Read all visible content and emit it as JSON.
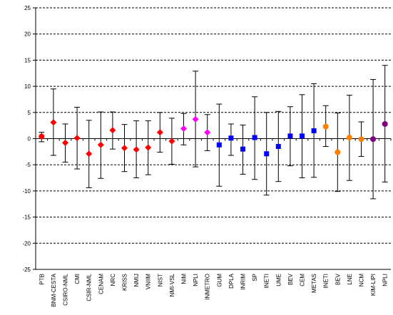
{
  "chart_data": {
    "type": "scatter",
    "title": "",
    "xlabel": "",
    "ylabel": "",
    "ylim": [
      -25,
      25
    ],
    "ytick_step": 5,
    "yticks": [
      "-25",
      "-20",
      "-15",
      "-10",
      "-5",
      "0",
      "5",
      "10",
      "15",
      "20",
      "25"
    ],
    "grid": "horizontal dashed",
    "legend": "none",
    "error_bar_color": "#000000",
    "points": [
      {
        "label": "PTB",
        "y": 0.4,
        "lower": -0.6,
        "upper": 1.2,
        "marker": "circle",
        "color": "#ff0000"
      },
      {
        "label": "BNM-CESTA",
        "y": 3.1,
        "lower": -3.2,
        "upper": 9.5,
        "marker": "diamond",
        "color": "#ff0000"
      },
      {
        "label": "CSIRO-NML",
        "y": -0.8,
        "lower": -4.5,
        "upper": 2.8,
        "marker": "diamond",
        "color": "#ff0000"
      },
      {
        "label": "CMI",
        "y": 0.1,
        "lower": -5.8,
        "upper": 6.0,
        "marker": "diamond",
        "color": "#ff0000"
      },
      {
        "label": "CSIR-NML",
        "y": -2.9,
        "lower": -9.4,
        "upper": 3.5,
        "marker": "diamond",
        "color": "#ff0000"
      },
      {
        "label": "CENAM",
        "y": -1.2,
        "lower": -7.6,
        "upper": 5.1,
        "marker": "diamond",
        "color": "#ff0000"
      },
      {
        "label": "NRC",
        "y": 1.6,
        "lower": -2.0,
        "upper": 5.1,
        "marker": "diamond",
        "color": "#ff0000"
      },
      {
        "label": "KRISS",
        "y": -1.8,
        "lower": -6.3,
        "upper": 2.7,
        "marker": "diamond",
        "color": "#ff0000"
      },
      {
        "label": "NMIJ",
        "y": -2.1,
        "lower": -7.5,
        "upper": 3.4,
        "marker": "diamond",
        "color": "#ff0000"
      },
      {
        "label": "VNIIM",
        "y": -1.7,
        "lower": -6.9,
        "upper": 3.4,
        "marker": "diamond",
        "color": "#ff0000"
      },
      {
        "label": "NIST",
        "y": 1.2,
        "lower": -2.6,
        "upper": 5.0,
        "marker": "diamond",
        "color": "#ff0000"
      },
      {
        "label": "NMI-VSL",
        "y": -0.5,
        "lower": -4.9,
        "upper": 3.9,
        "marker": "diamond",
        "color": "#ff0000"
      },
      {
        "label": "NIM",
        "y": 1.9,
        "lower": -1.2,
        "upper": 4.8,
        "marker": "diamond",
        "color": "#ff00ff"
      },
      {
        "label": "NPLI",
        "y": 3.7,
        "lower": -5.4,
        "upper": 12.9,
        "marker": "diamond",
        "color": "#ff00ff"
      },
      {
        "label": "INMETRO",
        "y": 1.2,
        "lower": -2.3,
        "upper": 4.6,
        "marker": "diamond",
        "color": "#ff00ff"
      },
      {
        "label": "GUM",
        "y": -1.2,
        "lower": -9.1,
        "upper": 6.6,
        "marker": "square",
        "color": "#0000ff"
      },
      {
        "label": "DPLA",
        "y": 0.1,
        "lower": -3.2,
        "upper": 2.8,
        "marker": "square",
        "color": "#0000ff"
      },
      {
        "label": "INRIM",
        "y": -2.0,
        "lower": -6.8,
        "upper": 2.6,
        "marker": "square",
        "color": "#0000ff"
      },
      {
        "label": "SP",
        "y": 0.2,
        "lower": -7.8,
        "upper": 8.0,
        "marker": "square",
        "color": "#0000ff"
      },
      {
        "label": "INETI",
        "y": -2.9,
        "lower": -10.8,
        "upper": 5.0,
        "marker": "square",
        "color": "#0000ff"
      },
      {
        "label": "UME",
        "y": -1.5,
        "lower": -8.2,
        "upper": 5.2,
        "marker": "square",
        "color": "#0000ff"
      },
      {
        "label": "BEV",
        "y": 0.5,
        "lower": -5.2,
        "upper": 6.1,
        "marker": "square",
        "color": "#0000ff"
      },
      {
        "label": "CEM",
        "y": 0.5,
        "lower": -7.5,
        "upper": 8.4,
        "marker": "square",
        "color": "#0000ff"
      },
      {
        "label": "METAS",
        "y": 1.5,
        "lower": -7.4,
        "upper": 10.5,
        "marker": "square",
        "color": "#0000ff"
      },
      {
        "label": "INETI",
        "y": 2.3,
        "lower": -1.5,
        "upper": 6.3,
        "marker": "circle",
        "color": "#ff8000"
      },
      {
        "label": "BEV",
        "y": -2.6,
        "lower": -10.1,
        "upper": 4.9,
        "marker": "circle",
        "color": "#ff8000"
      },
      {
        "label": "LNE",
        "y": 0.2,
        "lower": -8.0,
        "upper": 8.3,
        "marker": "circle",
        "color": "#ff8000"
      },
      {
        "label": "NCM",
        "y": -0.1,
        "lower": -3.4,
        "upper": 3.2,
        "marker": "circle",
        "color": "#ff8000"
      },
      {
        "label": "KIM-LIPI",
        "y": -0.1,
        "lower": -11.5,
        "upper": 11.3,
        "marker": "circle",
        "color": "#800080"
      },
      {
        "label": "NPLI",
        "y": 2.8,
        "lower": -8.3,
        "upper": 14.0,
        "marker": "circle",
        "color": "#800080"
      }
    ]
  }
}
